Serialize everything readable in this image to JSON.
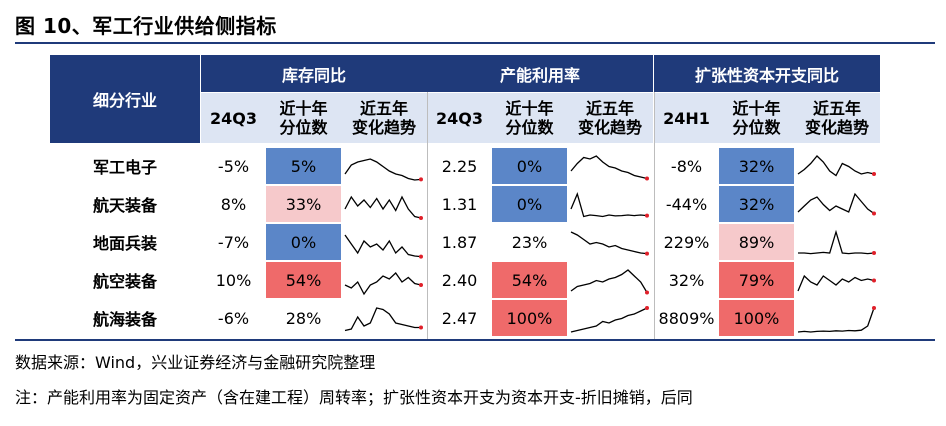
{
  "title": "图 10、军工行业供给侧指标",
  "header": {
    "row_label": "细分行业",
    "groups": [
      "库存同比",
      "产能利用率",
      "扩张性资本开支同比"
    ],
    "subheaders": [
      [
        "24Q3",
        "近十年\n分位数",
        "近五年\n变化趋势"
      ],
      [
        "24Q3",
        "近十年\n分位数",
        "近五年\n变化趋势"
      ],
      [
        "24H1",
        "近十年\n分位数",
        "近五年\n变化趋势"
      ]
    ]
  },
  "rows": [
    {
      "name": "军工电子",
      "values": [
        "-5%",
        "5%",
        "2.25",
        "0%",
        "-8%",
        "32%"
      ]
    },
    {
      "name": "航天装备",
      "values": [
        "8%",
        "33%",
        "1.31",
        "0%",
        "-44%",
        "32%"
      ]
    },
    {
      "name": "地面兵装",
      "values": [
        "-7%",
        "0%",
        "1.87",
        "23%",
        "229%",
        "89%"
      ]
    },
    {
      "name": "航空装备",
      "values": [
        "10%",
        "54%",
        "2.40",
        "54%",
        "32%",
        "79%"
      ]
    },
    {
      "name": "航海装备",
      "values": [
        "-6%",
        "28%",
        "2.47",
        "100%",
        "8809%",
        "100%"
      ]
    }
  ],
  "colors": {
    "header_bg": "#1f3a7a",
    "subheader_bg": "#dde5f3",
    "pct_low": "#5b86c8",
    "pct_mid_high": "#f6c9cb",
    "pct_high": "#ef6a6a",
    "spark_line": "#000000",
    "spark_end": "#e0202a"
  },
  "sparklines": {
    "inventory": [
      [
        0.7,
        0.4,
        0.3,
        0.25,
        0.2,
        0.3,
        0.45,
        0.6,
        0.7,
        0.75,
        0.85,
        0.9,
        0.88
      ],
      [
        0.6,
        0.2,
        0.5,
        0.3,
        0.55,
        0.25,
        0.6,
        0.3,
        0.65,
        0.2,
        0.6,
        0.85,
        0.9
      ],
      [
        0.2,
        0.5,
        0.8,
        0.4,
        0.6,
        0.5,
        0.7,
        0.4,
        0.8,
        0.6,
        0.85,
        0.9,
        0.92
      ],
      [
        0.6,
        0.7,
        0.5,
        0.9,
        0.6,
        0.5,
        0.3,
        0.4,
        0.2,
        0.5,
        0.35,
        0.55,
        0.6
      ],
      [
        0.85,
        0.8,
        0.4,
        0.7,
        0.6,
        0.1,
        0.15,
        0.3,
        0.6,
        0.65,
        0.7,
        0.75,
        0.75
      ]
    ],
    "capacity": [
      [
        0.6,
        0.35,
        0.15,
        0.2,
        0.1,
        0.3,
        0.45,
        0.5,
        0.6,
        0.65,
        0.75,
        0.8,
        0.85
      ],
      [
        0.6,
        0.1,
        0.85,
        0.8,
        0.82,
        0.85,
        0.8,
        0.83,
        0.82,
        0.8,
        0.82,
        0.8,
        0.82
      ],
      [
        0.1,
        0.2,
        0.35,
        0.5,
        0.45,
        0.5,
        0.6,
        0.55,
        0.65,
        0.7,
        0.75,
        0.8,
        0.82
      ],
      [
        0.8,
        0.65,
        0.6,
        0.55,
        0.45,
        0.5,
        0.4,
        0.35,
        0.25,
        0.1,
        0.3,
        0.5,
        0.85
      ],
      [
        0.9,
        0.85,
        0.8,
        0.75,
        0.7,
        0.55,
        0.6,
        0.5,
        0.45,
        0.35,
        0.3,
        0.2,
        0.1
      ]
    ],
    "capex": [
      [
        0.7,
        0.55,
        0.35,
        0.1,
        0.3,
        0.6,
        0.75,
        0.35,
        0.45,
        0.6,
        0.7,
        0.65,
        0.7
      ],
      [
        0.7,
        0.5,
        0.3,
        0.2,
        0.45,
        0.65,
        0.5,
        0.6,
        0.7,
        0.1,
        0.35,
        0.6,
        0.75
      ],
      [
        0.8,
        0.8,
        0.82,
        0.8,
        0.78,
        0.8,
        0.1,
        0.8,
        0.82,
        0.8,
        0.8,
        0.82,
        0.8
      ],
      [
        0.8,
        0.3,
        0.5,
        0.6,
        0.3,
        0.45,
        0.6,
        0.4,
        0.5,
        0.35,
        0.45,
        0.4,
        0.45
      ],
      [
        0.9,
        0.88,
        0.9,
        0.88,
        0.87,
        0.88,
        0.86,
        0.87,
        0.85,
        0.86,
        0.84,
        0.7,
        0.1
      ]
    ]
  },
  "footer": {
    "source": "数据来源：Wind，兴业证券经济与金融研究院整理",
    "note": "注：产能利用率为固定资产（含在建工程）周转率；扩张性资本开支为资本开支-折旧摊销，后同"
  }
}
